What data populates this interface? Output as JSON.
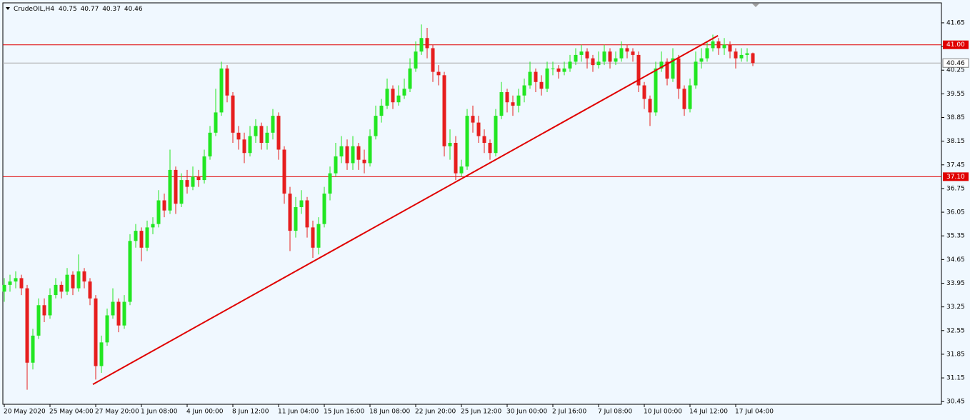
{
  "chart_data": {
    "type": "candlestick",
    "title": "CrudeOIL,H4",
    "categories": [
      "20 May 2020",
      null,
      null,
      null,
      null,
      null,
      null,
      null,
      "25 May 04:00",
      null,
      null,
      null,
      null,
      null,
      null,
      null,
      "27 May 20:00",
      null,
      null,
      null,
      null,
      null,
      null,
      null,
      "1 Jun 08:00",
      null,
      null,
      null,
      null,
      null,
      null,
      null,
      "4 Jun 00:00",
      null,
      null,
      null,
      null,
      null,
      null,
      null,
      "8 Jun 12:00",
      null,
      null,
      null,
      null,
      null,
      null,
      null,
      "11 Jun 04:00",
      null,
      null,
      null,
      null,
      null,
      null,
      null,
      "15 Jun 16:00",
      null,
      null,
      null,
      null,
      null,
      null,
      null,
      "18 Jun 08:00",
      null,
      null,
      null,
      null,
      null,
      null,
      null,
      "22 Jun 20:00",
      null,
      null,
      null,
      null,
      null,
      null,
      null,
      "25 Jun 12:00",
      null,
      null,
      null,
      null,
      null,
      null,
      null,
      "30 Jun 00:00",
      null,
      null,
      null,
      null,
      null,
      null,
      null,
      "2 Jul 16:00",
      null,
      null,
      null,
      null,
      null,
      null,
      null,
      "7 Jul 08:00",
      null,
      null,
      null,
      null,
      null,
      null,
      null,
      "10 Jul 00:00",
      null,
      null,
      null,
      null,
      null,
      null,
      null,
      "14 Jul 12:00",
      null,
      null,
      null,
      null,
      null,
      null,
      null,
      "17 Jul 04:00",
      null,
      null,
      null
    ],
    "open": [
      33.7,
      33.9,
      34.0,
      34.1,
      33.8,
      31.6,
      32.4,
      33.3,
      33.0,
      33.6,
      33.9,
      33.7,
      34.2,
      33.8,
      34.3,
      34.0,
      33.5,
      31.5,
      32.2,
      33.0,
      33.4,
      32.7,
      33.4,
      35.2,
      35.5,
      35.0,
      35.6,
      35.7,
      36.4,
      36.1,
      37.3,
      36.3,
      37.0,
      36.8,
      37.1,
      37.0,
      37.7,
      38.4,
      39.0,
      40.3,
      39.5,
      38.4,
      38.2,
      37.8,
      38.3,
      38.6,
      38.1,
      38.4,
      38.9,
      37.9,
      36.6,
      35.5,
      36.2,
      36.4,
      35.6,
      35.0,
      35.7,
      36.6,
      37.2,
      37.7,
      38.0,
      37.5,
      38.0,
      37.6,
      37.5,
      38.3,
      38.9,
      39.2,
      39.7,
      39.3,
      39.5,
      39.7,
      40.3,
      40.8,
      41.2,
      40.9,
      40.2,
      40.1,
      38.0,
      38.1,
      37.2,
      37.4,
      38.9,
      38.7,
      38.3,
      38.1,
      37.8,
      38.9,
      39.6,
      39.3,
      39.2,
      39.5,
      39.8,
      40.2,
      39.9,
      39.7,
      40.3,
      40.3,
      40.2,
      40.3,
      40.5,
      40.7,
      40.8,
      40.6,
      40.4,
      40.5,
      40.8,
      40.5,
      40.6,
      40.9,
      40.8,
      40.7,
      39.8,
      39.4,
      39.0,
      40.3,
      40.5,
      40.0,
      40.6,
      39.7,
      39.1,
      39.8,
      40.5,
      40.6,
      40.9,
      41.1,
      40.9,
      41.0,
      40.8,
      40.6,
      40.7,
      40.75
    ],
    "high": [
      34.1,
      34.2,
      34.3,
      34.2,
      33.9,
      32.6,
      33.5,
      33.5,
      33.8,
      34.1,
      34.0,
      34.4,
      34.3,
      34.8,
      34.4,
      34.1,
      33.6,
      32.4,
      33.2,
      33.8,
      33.5,
      33.6,
      35.4,
      35.7,
      35.6,
      35.8,
      35.9,
      36.7,
      36.6,
      37.9,
      37.4,
      37.2,
      37.3,
      37.4,
      37.3,
      37.9,
      38.6,
      39.7,
      40.5,
      40.4,
      39.6,
      38.6,
      38.4,
      38.6,
      38.8,
      38.7,
      38.6,
      39.1,
      39.0,
      38.0,
      36.8,
      36.5,
      36.7,
      36.5,
      35.8,
      35.9,
      36.8,
      37.4,
      38.1,
      38.3,
      38.2,
      38.3,
      38.1,
      37.9,
      38.5,
      39.2,
      39.4,
      40.0,
      39.8,
      39.8,
      40.0,
      40.6,
      41.1,
      41.6,
      41.5,
      41.0,
      40.4,
      40.2,
      38.5,
      38.3,
      37.6,
      39.1,
      39.2,
      38.9,
      38.5,
      38.2,
      39.1,
      39.9,
      39.7,
      39.5,
      39.7,
      40.0,
      40.5,
      40.3,
      40.1,
      40.5,
      40.5,
      40.4,
      40.5,
      40.7,
      40.9,
      41.0,
      40.9,
      40.7,
      40.8,
      41.0,
      40.9,
      40.8,
      41.1,
      41.0,
      40.9,
      40.8,
      39.9,
      39.5,
      40.5,
      40.8,
      40.6,
      40.9,
      40.7,
      39.8,
      40.0,
      40.8,
      40.9,
      41.1,
      41.3,
      41.2,
      41.2,
      41.1,
      40.9,
      40.9,
      40.9,
      40.77
    ],
    "low": [
      33.4,
      33.7,
      33.8,
      33.6,
      30.8,
      31.4,
      32.3,
      32.8,
      32.9,
      33.5,
      33.5,
      33.6,
      33.6,
      33.7,
      33.8,
      33.3,
      31.1,
      31.3,
      32.1,
      32.9,
      32.5,
      32.6,
      33.3,
      35.0,
      34.6,
      34.9,
      35.4,
      35.6,
      35.9,
      36.0,
      36.0,
      36.2,
      36.6,
      36.7,
      36.8,
      36.9,
      37.6,
      38.3,
      38.9,
      39.3,
      38.1,
      37.9,
      37.5,
      37.7,
      38.1,
      37.9,
      37.9,
      38.2,
      37.6,
      36.3,
      34.9,
      35.3,
      36.0,
      35.3,
      34.7,
      34.8,
      35.6,
      36.4,
      37.1,
      37.5,
      37.3,
      37.3,
      37.3,
      37.2,
      37.4,
      38.2,
      38.7,
      39.1,
      39.1,
      39.2,
      39.4,
      39.6,
      40.2,
      40.7,
      40.6,
      39.9,
      39.8,
      37.7,
      37.6,
      37.0,
      37.1,
      37.3,
      38.4,
      38.1,
      37.8,
      37.6,
      37.7,
      38.8,
      39.0,
      38.9,
      39.0,
      39.3,
      39.7,
      39.6,
      39.5,
      39.6,
      40.1,
      40.0,
      40.1,
      40.2,
      40.4,
      40.5,
      40.3,
      40.2,
      40.3,
      40.4,
      40.3,
      40.4,
      40.5,
      40.6,
      40.5,
      39.6,
      39.1,
      38.6,
      38.9,
      40.2,
      39.8,
      39.9,
      39.4,
      38.9,
      39.0,
      39.7,
      40.3,
      40.5,
      40.8,
      40.7,
      40.7,
      40.6,
      40.3,
      40.5,
      40.5,
      40.37
    ],
    "close": [
      33.9,
      34.0,
      34.1,
      33.8,
      31.6,
      32.4,
      33.3,
      33.0,
      33.6,
      33.9,
      33.7,
      34.2,
      33.8,
      34.3,
      34.0,
      33.5,
      31.5,
      32.2,
      33.0,
      33.4,
      32.7,
      33.4,
      35.2,
      35.5,
      35.0,
      35.6,
      35.7,
      36.4,
      36.1,
      37.3,
      36.3,
      37.0,
      36.8,
      37.1,
      37.0,
      37.7,
      38.4,
      39.0,
      40.3,
      39.5,
      38.4,
      38.2,
      37.8,
      38.3,
      38.6,
      38.1,
      38.4,
      38.9,
      37.9,
      36.6,
      35.5,
      36.2,
      36.4,
      35.6,
      35.0,
      35.7,
      36.6,
      37.2,
      37.7,
      38.0,
      37.5,
      38.0,
      37.6,
      37.5,
      38.3,
      38.9,
      39.2,
      39.7,
      39.3,
      39.5,
      39.7,
      40.3,
      40.8,
      41.2,
      40.9,
      40.2,
      40.1,
      38.0,
      38.1,
      37.2,
      37.4,
      38.9,
      38.7,
      38.3,
      38.1,
      37.8,
      38.9,
      39.6,
      39.3,
      39.2,
      39.5,
      39.8,
      40.2,
      39.9,
      39.7,
      40.3,
      40.3,
      40.2,
      40.3,
      40.5,
      40.7,
      40.8,
      40.6,
      40.4,
      40.5,
      40.8,
      40.5,
      40.6,
      40.9,
      40.8,
      40.7,
      39.8,
      39.4,
      39.0,
      40.3,
      40.5,
      40.0,
      40.6,
      39.7,
      39.1,
      39.8,
      40.5,
      40.6,
      40.9,
      41.1,
      40.9,
      41.0,
      40.8,
      40.6,
      40.7,
      40.75,
      40.46
    ],
    "up_color": "#22e622",
    "down_color": "#e61e1e",
    "ylim": [
      30.37,
      42.24
    ],
    "yticks": [
      30.45,
      31.15,
      31.85,
      32.55,
      33.25,
      33.95,
      34.65,
      35.35,
      36.05,
      36.75,
      37.45,
      38.15,
      38.85,
      39.55,
      40.25,
      40.95,
      41.65
    ],
    "hlines": [
      {
        "value": 41.0,
        "label": "41.00",
        "color": "#e00000"
      },
      {
        "value": 37.1,
        "label": "37.10",
        "color": "#e00000"
      }
    ],
    "price_line_color": "#a9a9a9",
    "trendline": {
      "x": [
        15.5,
        124.9
      ],
      "values": [
        30.96,
        41.27
      ],
      "color": "#e00000"
    }
  }
}
